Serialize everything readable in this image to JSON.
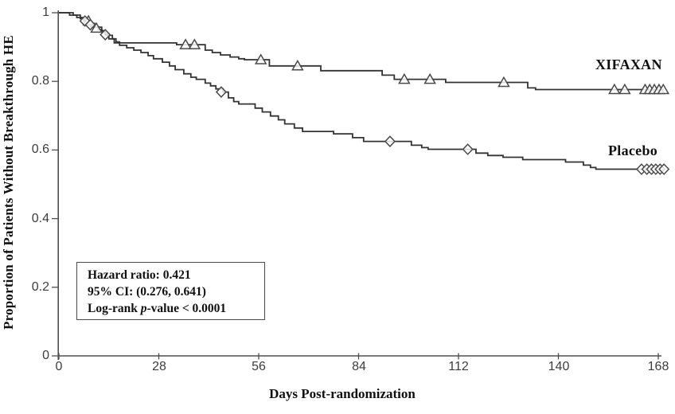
{
  "chart_data": {
    "type": "line",
    "subtype": "kaplan-meier-step",
    "title": "",
    "xlabel": "Days Post-randomization",
    "ylabel": "Proportion of Patients Without Breakthrough HE",
    "xlim": [
      0,
      168
    ],
    "ylim": [
      0,
      1
    ],
    "grid": false,
    "x_ticks": [
      "0",
      "28",
      "56",
      "84",
      "112",
      "140",
      "168"
    ],
    "x_tick_values": [
      0,
      28,
      56,
      84,
      112,
      140,
      168
    ],
    "y_ticks": [
      "1",
      "0.8",
      "0.6",
      "0.4",
      "0.2",
      "0"
    ],
    "y_tick_values": [
      1,
      0.8,
      0.6,
      0.4,
      0.2,
      0
    ],
    "legend_position": "right-on-plot",
    "line_color": "#333333",
    "series": [
      {
        "name": "XIFAXAN",
        "marker": "triangle",
        "steps": [
          [
            0,
            1.0
          ],
          [
            4,
            0.993
          ],
          [
            6,
            0.983
          ],
          [
            8,
            0.976
          ],
          [
            9,
            0.969
          ],
          [
            10,
            0.958
          ],
          [
            12,
            0.948
          ],
          [
            13,
            0.938
          ],
          [
            14,
            0.924
          ],
          [
            15.5,
            0.912
          ],
          [
            33,
            0.907
          ],
          [
            41,
            0.891
          ],
          [
            43,
            0.884
          ],
          [
            45.3,
            0.877
          ],
          [
            48,
            0.871
          ],
          [
            50.4,
            0.866
          ],
          [
            52,
            0.863
          ],
          [
            59,
            0.845
          ],
          [
            73.4,
            0.831
          ],
          [
            90.6,
            0.818
          ],
          [
            94,
            0.806
          ],
          [
            108.4,
            0.797
          ],
          [
            131.4,
            0.781
          ],
          [
            133.6,
            0.776
          ],
          [
            169.5,
            0.776
          ]
        ],
        "censor_marks": [
          [
            8.3,
            0.976
          ],
          [
            10.5,
            0.955
          ],
          [
            35.5,
            0.907
          ],
          [
            38,
            0.907
          ],
          [
            56.6,
            0.863
          ],
          [
            66.9,
            0.845
          ],
          [
            96.8,
            0.806
          ],
          [
            104,
            0.806
          ],
          [
            124.7,
            0.797
          ],
          [
            155.7,
            0.776
          ],
          [
            158.6,
            0.776
          ],
          [
            164.3,
            0.776
          ],
          [
            165.6,
            0.776
          ],
          [
            166.9,
            0.776
          ],
          [
            168.2,
            0.776
          ],
          [
            169.4,
            0.776
          ]
        ]
      },
      {
        "name": "Placebo",
        "marker": "diamond",
        "steps": [
          [
            0,
            1.0
          ],
          [
            3,
            0.993
          ],
          [
            5,
            0.986
          ],
          [
            7,
            0.976
          ],
          [
            8,
            0.969
          ],
          [
            9,
            0.958
          ],
          [
            11,
            0.951
          ],
          [
            12,
            0.944
          ],
          [
            13,
            0.934
          ],
          [
            15,
            0.924
          ],
          [
            16,
            0.915
          ],
          [
            17,
            0.905
          ],
          [
            19,
            0.898
          ],
          [
            21,
            0.891
          ],
          [
            23,
            0.884
          ],
          [
            25,
            0.875
          ],
          [
            26.5,
            0.866
          ],
          [
            29,
            0.856
          ],
          [
            31,
            0.845
          ],
          [
            32.6,
            0.834
          ],
          [
            35,
            0.822
          ],
          [
            37,
            0.812
          ],
          [
            38.5,
            0.806
          ],
          [
            41,
            0.795
          ],
          [
            42.5,
            0.787
          ],
          [
            44,
            0.778
          ],
          [
            46,
            0.769
          ],
          [
            47.5,
            0.752
          ],
          [
            49,
            0.741
          ],
          [
            50.4,
            0.734
          ],
          [
            55,
            0.722
          ],
          [
            57,
            0.711
          ],
          [
            59.3,
            0.699
          ],
          [
            61.5,
            0.688
          ],
          [
            63.3,
            0.676
          ],
          [
            66,
            0.664
          ],
          [
            68.3,
            0.654
          ],
          [
            77,
            0.647
          ],
          [
            82.3,
            0.636
          ],
          [
            85.4,
            0.625
          ],
          [
            98.8,
            0.614
          ],
          [
            101.7,
            0.607
          ],
          [
            103.5,
            0.602
          ],
          [
            116.9,
            0.591
          ],
          [
            120.2,
            0.584
          ],
          [
            124.5,
            0.579
          ],
          [
            130,
            0.572
          ],
          [
            142,
            0.565
          ],
          [
            147,
            0.556
          ],
          [
            149,
            0.549
          ],
          [
            150.5,
            0.544
          ],
          [
            169.5,
            0.544
          ]
        ],
        "censor_marks": [
          [
            7.3,
            0.976
          ],
          [
            8.8,
            0.965
          ],
          [
            13,
            0.936
          ],
          [
            45.5,
            0.769
          ],
          [
            92.8,
            0.625
          ],
          [
            114.6,
            0.602
          ],
          [
            163.3,
            0.544
          ],
          [
            164.8,
            0.544
          ],
          [
            166.1,
            0.544
          ],
          [
            167.3,
            0.544
          ],
          [
            168.5,
            0.544
          ],
          [
            169.6,
            0.544
          ]
        ]
      }
    ],
    "annotation": {
      "line1": "Hazard ratio: 0.421",
      "line2": "95% CI: (0.276, 0.641)",
      "line3_pre": "Log-rank ",
      "line3_italic": "p",
      "line3_post": "-value < 0.0001"
    }
  }
}
